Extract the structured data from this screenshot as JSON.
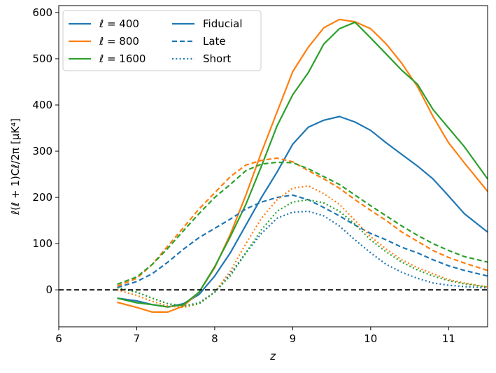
{
  "chart_data": {
    "type": "line",
    "title": "",
    "xlabel": "z",
    "ylabel": "ℓ(ℓ + 1)Cℓ/2π [μK⁴]",
    "xlim": [
      6,
      11.5
    ],
    "ylim": [
      -80,
      615
    ],
    "xticks": [
      6,
      7,
      8,
      9,
      10,
      11
    ],
    "yticks": [
      0,
      100,
      200,
      300,
      400,
      500,
      600
    ],
    "grid": false,
    "legend_position": "top-left",
    "reference_line": {
      "y": 0,
      "style": "dashed",
      "color": "#000000"
    },
    "colors": {
      "400": "#1f77b4",
      "800": "#ff7f0e",
      "1600": "#2ca02c",
      "axis": "#000000"
    },
    "legend": {
      "ells": [
        {
          "label": "ℓ = 400",
          "color": "#1f77b4"
        },
        {
          "label": "ℓ = 800",
          "color": "#ff7f0e"
        },
        {
          "label": "ℓ = 1600",
          "color": "#2ca02c"
        }
      ],
      "models": [
        {
          "label": "Fiducial",
          "style": "solid",
          "color": "#1f77b4"
        },
        {
          "label": "Late",
          "style": "dashed",
          "color": "#1f77b4"
        },
        {
          "label": "Short",
          "style": "dotted",
          "color": "#1f77b4"
        }
      ]
    },
    "series": [
      {
        "name": "Fiducial ℓ=400",
        "ell": "400",
        "model": "Fiducial",
        "style": "solid",
        "x": [
          6.75,
          7.0,
          7.2,
          7.4,
          7.6,
          7.8,
          8.0,
          8.2,
          8.4,
          8.6,
          8.8,
          9.0,
          9.2,
          9.4,
          9.6,
          9.8,
          10.0,
          10.2,
          10.4,
          10.6,
          10.8,
          11.0,
          11.2,
          11.5
        ],
        "y": [
          -18,
          -24,
          -32,
          -37,
          -30,
          -10,
          30,
          80,
          140,
          200,
          255,
          315,
          352,
          367,
          375,
          363,
          345,
          318,
          293,
          268,
          240,
          203,
          165,
          125
        ]
      },
      {
        "name": "Fiducial ℓ=800",
        "ell": "800",
        "model": "Fiducial",
        "style": "solid",
        "x": [
          6.75,
          7.0,
          7.2,
          7.4,
          7.6,
          7.8,
          8.0,
          8.2,
          8.4,
          8.6,
          8.8,
          9.0,
          9.2,
          9.4,
          9.6,
          9.8,
          10.0,
          10.2,
          10.4,
          10.6,
          10.8,
          11.0,
          11.2,
          11.5
        ],
        "y": [
          -27,
          -38,
          -48,
          -48,
          -35,
          -5,
          48,
          120,
          205,
          298,
          385,
          472,
          525,
          567,
          585,
          580,
          565,
          532,
          490,
          440,
          375,
          318,
          275,
          213
        ]
      },
      {
        "name": "Fiducial ℓ=1600",
        "ell": "1600",
        "model": "Fiducial",
        "style": "solid",
        "x": [
          6.75,
          7.0,
          7.2,
          7.4,
          7.6,
          7.8,
          8.0,
          8.2,
          8.4,
          8.6,
          8.8,
          9.0,
          9.2,
          9.4,
          9.6,
          9.8,
          10.0,
          10.2,
          10.4,
          10.6,
          10.8,
          11.0,
          11.2,
          11.5
        ],
        "y": [
          -18,
          -28,
          -32,
          -37,
          -32,
          -5,
          50,
          115,
          185,
          268,
          355,
          422,
          470,
          532,
          565,
          579,
          545,
          510,
          475,
          445,
          390,
          350,
          310,
          240
        ]
      },
      {
        "name": "Late ℓ=400",
        "ell": "400",
        "model": "Late",
        "style": "dashed",
        "x": [
          6.75,
          7.0,
          7.2,
          7.4,
          7.6,
          7.8,
          8.0,
          8.2,
          8.4,
          8.6,
          8.8,
          9.0,
          9.2,
          9.4,
          9.6,
          9.8,
          10.0,
          10.2,
          10.4,
          10.6,
          10.8,
          11.0,
          11.2,
          11.5
        ],
        "y": [
          5,
          18,
          35,
          60,
          88,
          113,
          133,
          153,
          175,
          190,
          200,
          205,
          195,
          178,
          160,
          140,
          122,
          108,
          92,
          80,
          65,
          52,
          42,
          30
        ]
      },
      {
        "name": "Late ℓ=800",
        "ell": "800",
        "model": "Late",
        "style": "dashed",
        "x": [
          6.75,
          7.0,
          7.2,
          7.4,
          7.6,
          7.8,
          8.0,
          8.2,
          8.4,
          8.6,
          8.8,
          9.0,
          9.2,
          9.4,
          9.6,
          9.8,
          10.0,
          10.2,
          10.4,
          10.6,
          10.8,
          11.0,
          11.2,
          11.5
        ],
        "y": [
          8,
          25,
          55,
          95,
          135,
          175,
          210,
          245,
          270,
          280,
          285,
          277,
          258,
          240,
          220,
          195,
          172,
          150,
          125,
          105,
          85,
          70,
          58,
          42
        ]
      },
      {
        "name": "Late ℓ=1600",
        "ell": "1600",
        "model": "Late",
        "style": "dashed",
        "x": [
          6.75,
          7.0,
          7.2,
          7.4,
          7.6,
          7.8,
          8.0,
          8.2,
          8.4,
          8.6,
          8.8,
          9.0,
          9.2,
          9.4,
          9.6,
          9.8,
          10.0,
          10.2,
          10.4,
          10.6,
          10.8,
          11.0,
          11.2,
          11.5
        ],
        "y": [
          12,
          28,
          55,
          90,
          128,
          165,
          200,
          228,
          258,
          272,
          276,
          275,
          262,
          245,
          228,
          205,
          182,
          160,
          138,
          118,
          100,
          85,
          72,
          60
        ]
      },
      {
        "name": "Short ℓ=400",
        "ell": "400",
        "model": "Short",
        "style": "dotted",
        "x": [
          6.75,
          7.0,
          7.2,
          7.4,
          7.6,
          7.8,
          8.0,
          8.2,
          8.4,
          8.6,
          8.8,
          9.0,
          9.2,
          9.4,
          9.6,
          9.8,
          10.0,
          10.2,
          10.4,
          10.6,
          10.8,
          11.0,
          11.2,
          11.5
        ],
        "y": [
          5,
          -5,
          -18,
          -30,
          -35,
          -28,
          -5,
          35,
          80,
          122,
          155,
          168,
          170,
          160,
          138,
          108,
          80,
          55,
          38,
          25,
          15,
          10,
          7,
          4
        ]
      },
      {
        "name": "Short ℓ=800",
        "ell": "800",
        "model": "Short",
        "style": "dotted",
        "x": [
          6.75,
          7.0,
          7.2,
          7.4,
          7.6,
          7.8,
          8.0,
          8.2,
          8.4,
          8.6,
          8.8,
          9.0,
          9.2,
          9.4,
          9.6,
          9.8,
          10.0,
          10.2,
          10.4,
          10.6,
          10.8,
          11.0,
          11.2,
          11.5
        ],
        "y": [
          0,
          -12,
          -25,
          -35,
          -38,
          -30,
          -5,
          40,
          100,
          155,
          195,
          220,
          225,
          208,
          185,
          150,
          115,
          88,
          65,
          48,
          35,
          22,
          15,
          6
        ]
      },
      {
        "name": "Short ℓ=1600",
        "ell": "1600",
        "model": "Short",
        "style": "dotted",
        "x": [
          6.75,
          7.0,
          7.2,
          7.4,
          7.6,
          7.8,
          8.0,
          8.2,
          8.4,
          8.6,
          8.8,
          9.0,
          9.2,
          9.4,
          9.6,
          9.8,
          10.0,
          10.2,
          10.4,
          10.6,
          10.8,
          11.0,
          11.2,
          11.5
        ],
        "y": [
          5,
          -5,
          -18,
          -30,
          -35,
          -30,
          -5,
          30,
          80,
          130,
          170,
          190,
          195,
          188,
          170,
          142,
          108,
          82,
          60,
          43,
          30,
          20,
          13,
          6
        ]
      }
    ]
  }
}
